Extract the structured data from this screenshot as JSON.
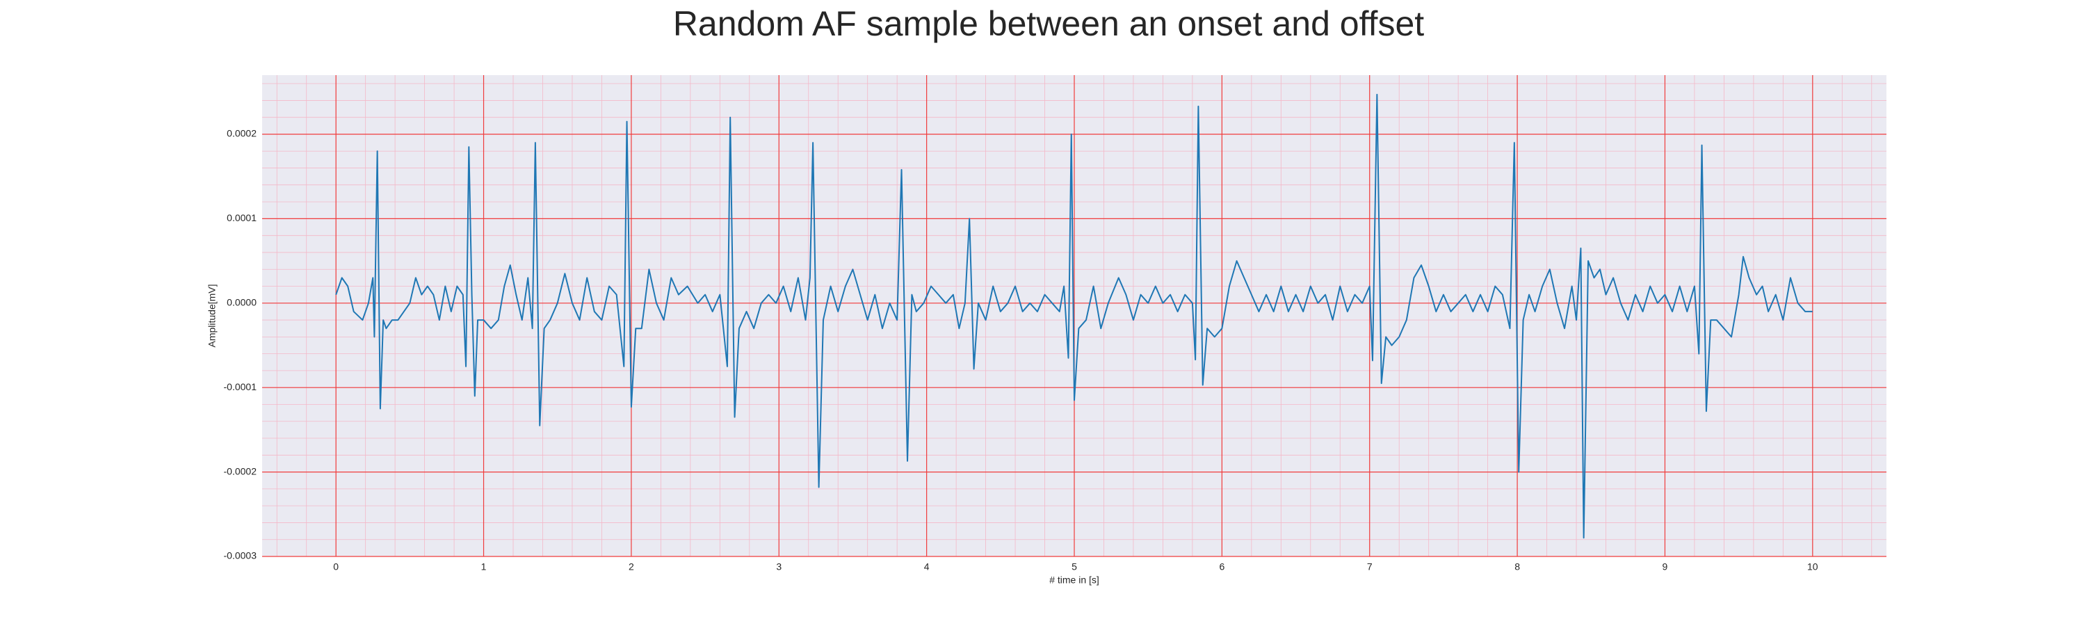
{
  "chart_data": {
    "type": "line",
    "title": "Random AF sample between an onset and offset",
    "xlabel": "# time in [s]",
    "ylabel": "Amplitude[mV]",
    "xlim": [
      -0.5,
      10.5
    ],
    "ylim": [
      -0.0003,
      0.00027
    ],
    "xticks": [
      0,
      1,
      2,
      3,
      4,
      5,
      6,
      7,
      8,
      9,
      10
    ],
    "yticks": [
      -0.0003,
      -0.0002,
      -0.0001,
      {
        "value": 0,
        "label": "0.0000"
      },
      0.0001,
      0.0002
    ],
    "grid": true,
    "x": [
      0.0,
      0.04,
      0.08,
      0.12,
      0.18,
      0.22,
      0.25,
      0.26,
      0.28,
      0.3,
      0.32,
      0.34,
      0.38,
      0.42,
      0.46,
      0.5,
      0.54,
      0.58,
      0.62,
      0.66,
      0.7,
      0.74,
      0.78,
      0.82,
      0.86,
      0.88,
      0.9,
      0.92,
      0.94,
      0.96,
      1.0,
      1.05,
      1.1,
      1.14,
      1.18,
      1.22,
      1.26,
      1.3,
      1.33,
      1.35,
      1.38,
      1.41,
      1.45,
      1.5,
      1.55,
      1.6,
      1.65,
      1.7,
      1.75,
      1.8,
      1.85,
      1.9,
      1.95,
      1.97,
      2.0,
      2.03,
      2.07,
      2.12,
      2.17,
      2.22,
      2.27,
      2.32,
      2.38,
      2.45,
      2.5,
      2.55,
      2.6,
      2.65,
      2.67,
      2.7,
      2.73,
      2.78,
      2.83,
      2.88,
      2.93,
      2.98,
      3.03,
      3.08,
      3.13,
      3.18,
      3.21,
      3.23,
      3.27,
      3.3,
      3.35,
      3.4,
      3.45,
      3.5,
      3.55,
      3.6,
      3.65,
      3.7,
      3.75,
      3.8,
      3.83,
      3.87,
      3.9,
      3.93,
      3.98,
      4.03,
      4.08,
      4.13,
      4.18,
      4.22,
      4.26,
      4.29,
      4.32,
      4.35,
      4.4,
      4.45,
      4.5,
      4.55,
      4.6,
      4.65,
      4.7,
      4.75,
      4.8,
      4.85,
      4.9,
      4.93,
      4.96,
      4.98,
      5.0,
      5.03,
      5.08,
      5.13,
      5.18,
      5.23,
      5.3,
      5.35,
      5.4,
      5.45,
      5.5,
      5.55,
      5.6,
      5.65,
      5.7,
      5.75,
      5.8,
      5.82,
      5.84,
      5.87,
      5.9,
      5.95,
      6.0,
      6.05,
      6.1,
      6.15,
      6.2,
      6.25,
      6.3,
      6.35,
      6.4,
      6.45,
      6.5,
      6.55,
      6.6,
      6.65,
      6.7,
      6.75,
      6.8,
      6.85,
      6.9,
      6.95,
      7.0,
      7.02,
      7.05,
      7.08,
      7.11,
      7.15,
      7.2,
      7.25,
      7.3,
      7.35,
      7.4,
      7.45,
      7.5,
      7.55,
      7.6,
      7.65,
      7.7,
      7.75,
      7.8,
      7.85,
      7.9,
      7.95,
      7.98,
      8.01,
      8.04,
      8.08,
      8.12,
      8.17,
      8.22,
      8.27,
      8.32,
      8.37,
      8.4,
      8.43,
      8.45,
      8.48,
      8.52,
      8.56,
      8.6,
      8.65,
      8.7,
      8.75,
      8.8,
      8.85,
      8.9,
      8.95,
      9.0,
      9.05,
      9.1,
      9.15,
      9.2,
      9.23,
      9.25,
      9.28,
      9.31,
      9.35,
      9.4,
      9.45,
      9.5,
      9.53,
      9.57,
      9.62,
      9.66,
      9.7,
      9.75,
      9.8,
      9.85,
      9.9,
      9.95,
      10.0
    ],
    "series": [
      {
        "name": "Amplitude",
        "color": "#1f77b4",
        "values": [
          1e-05,
          3e-05,
          2e-05,
          -1e-05,
          -2e-05,
          0.0,
          3e-05,
          -4e-05,
          0.00018,
          -0.000125,
          -2e-05,
          -3e-05,
          -2e-05,
          -2e-05,
          -1e-05,
          0.0,
          3e-05,
          1e-05,
          2e-05,
          1e-05,
          -2e-05,
          2e-05,
          -1e-05,
          2e-05,
          1e-05,
          -7.5e-05,
          0.000185,
          1e-05,
          -0.00011,
          -2e-05,
          -2e-05,
          -3e-05,
          -2e-05,
          2e-05,
          4.5e-05,
          1e-05,
          -2e-05,
          3e-05,
          -3e-05,
          0.00019,
          -0.000145,
          -3e-05,
          -2e-05,
          0.0,
          3.5e-05,
          0.0,
          -2e-05,
          3e-05,
          -1e-05,
          -2e-05,
          2e-05,
          1e-05,
          -7.5e-05,
          0.000215,
          -0.000123,
          -3e-05,
          -3e-05,
          4e-05,
          0.0,
          -2e-05,
          3e-05,
          1e-05,
          2e-05,
          0.0,
          1e-05,
          -1e-05,
          1e-05,
          -7.5e-05,
          0.00022,
          -0.000135,
          -3e-05,
          -1e-05,
          -3e-05,
          0.0,
          1e-05,
          0.0,
          2e-05,
          -1e-05,
          3e-05,
          -2e-05,
          3e-05,
          0.00019,
          -0.000218,
          -2e-05,
          2e-05,
          -1e-05,
          2e-05,
          4e-05,
          1e-05,
          -2e-05,
          1e-05,
          -3e-05,
          0.0,
          -2e-05,
          0.000158,
          -0.000187,
          1e-05,
          -1e-05,
          0.0,
          2e-05,
          1e-05,
          0.0,
          1e-05,
          -3e-05,
          0.0,
          0.0001,
          -7.8e-05,
          0.0,
          -2e-05,
          2e-05,
          -1e-05,
          0.0,
          2e-05,
          -1e-05,
          0.0,
          -1e-05,
          1e-05,
          0.0,
          -1e-05,
          2e-05,
          -6.5e-05,
          0.0002,
          -0.000115,
          -3e-05,
          -2e-05,
          2e-05,
          -3e-05,
          0.0,
          3e-05,
          1e-05,
          -2e-05,
          1e-05,
          0.0,
          2e-05,
          0.0,
          1e-05,
          -1e-05,
          1e-05,
          0.0,
          -6.7e-05,
          0.000233,
          -9.7e-05,
          -3e-05,
          -4e-05,
          -3e-05,
          2e-05,
          5e-05,
          3e-05,
          1e-05,
          -1e-05,
          1e-05,
          -1e-05,
          2e-05,
          -1e-05,
          1e-05,
          -1e-05,
          2e-05,
          0.0,
          1e-05,
          -2e-05,
          2e-05,
          -1e-05,
          1e-05,
          0.0,
          2e-05,
          -6.8e-05,
          0.000247,
          -9.5e-05,
          -4e-05,
          -5e-05,
          -4e-05,
          -2e-05,
          3e-05,
          4.5e-05,
          2e-05,
          -1e-05,
          1e-05,
          -1e-05,
          0.0,
          1e-05,
          -1e-05,
          1e-05,
          -1e-05,
          2e-05,
          1e-05,
          -3e-05,
          0.00019,
          -0.0002,
          -2e-05,
          1e-05,
          -1e-05,
          2e-05,
          4e-05,
          0.0,
          -3e-05,
          2e-05,
          -2e-05,
          6.5e-05,
          -0.000278,
          5e-05,
          3e-05,
          4e-05,
          1e-05,
          3e-05,
          0.0,
          -2e-05,
          1e-05,
          -1e-05,
          2e-05,
          0.0,
          1e-05,
          -1e-05,
          2e-05,
          -1e-05,
          2e-05,
          -6e-05,
          0.000187,
          -0.000128,
          -2e-05,
          -2e-05,
          -3e-05,
          -4e-05,
          1e-05,
          5.5e-05,
          3e-05,
          1e-05,
          2e-05,
          -1e-05,
          1e-05,
          -2e-05,
          3e-05,
          0.0,
          -1e-05,
          -1e-05
        ]
      }
    ]
  }
}
